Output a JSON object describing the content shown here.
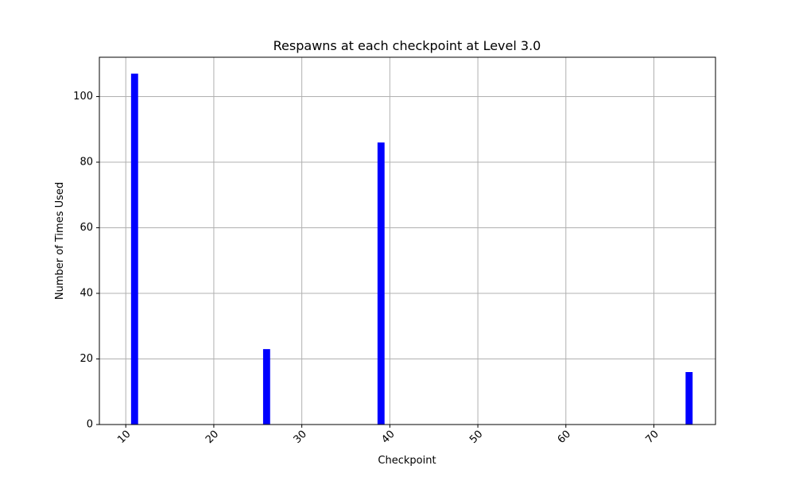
{
  "chart_data": {
    "type": "bar",
    "title": "Respawns at each checkpoint at Level 3.0",
    "xlabel": "Checkpoint",
    "ylabel": "Number of Times Used",
    "x": [
      11,
      26,
      39,
      74
    ],
    "values": [
      107,
      23,
      86,
      16
    ],
    "xlim": [
      7,
      77
    ],
    "ylim": [
      0,
      112
    ],
    "xticks": [
      10,
      20,
      30,
      40,
      50,
      60,
      70
    ],
    "yticks": [
      0,
      20,
      40,
      60,
      80,
      100
    ],
    "xtick_rotation": 45,
    "bar_width": 0.8,
    "grid": true,
    "colors": {
      "bar": "#0000ff",
      "grid": "#b0b0b0"
    }
  }
}
